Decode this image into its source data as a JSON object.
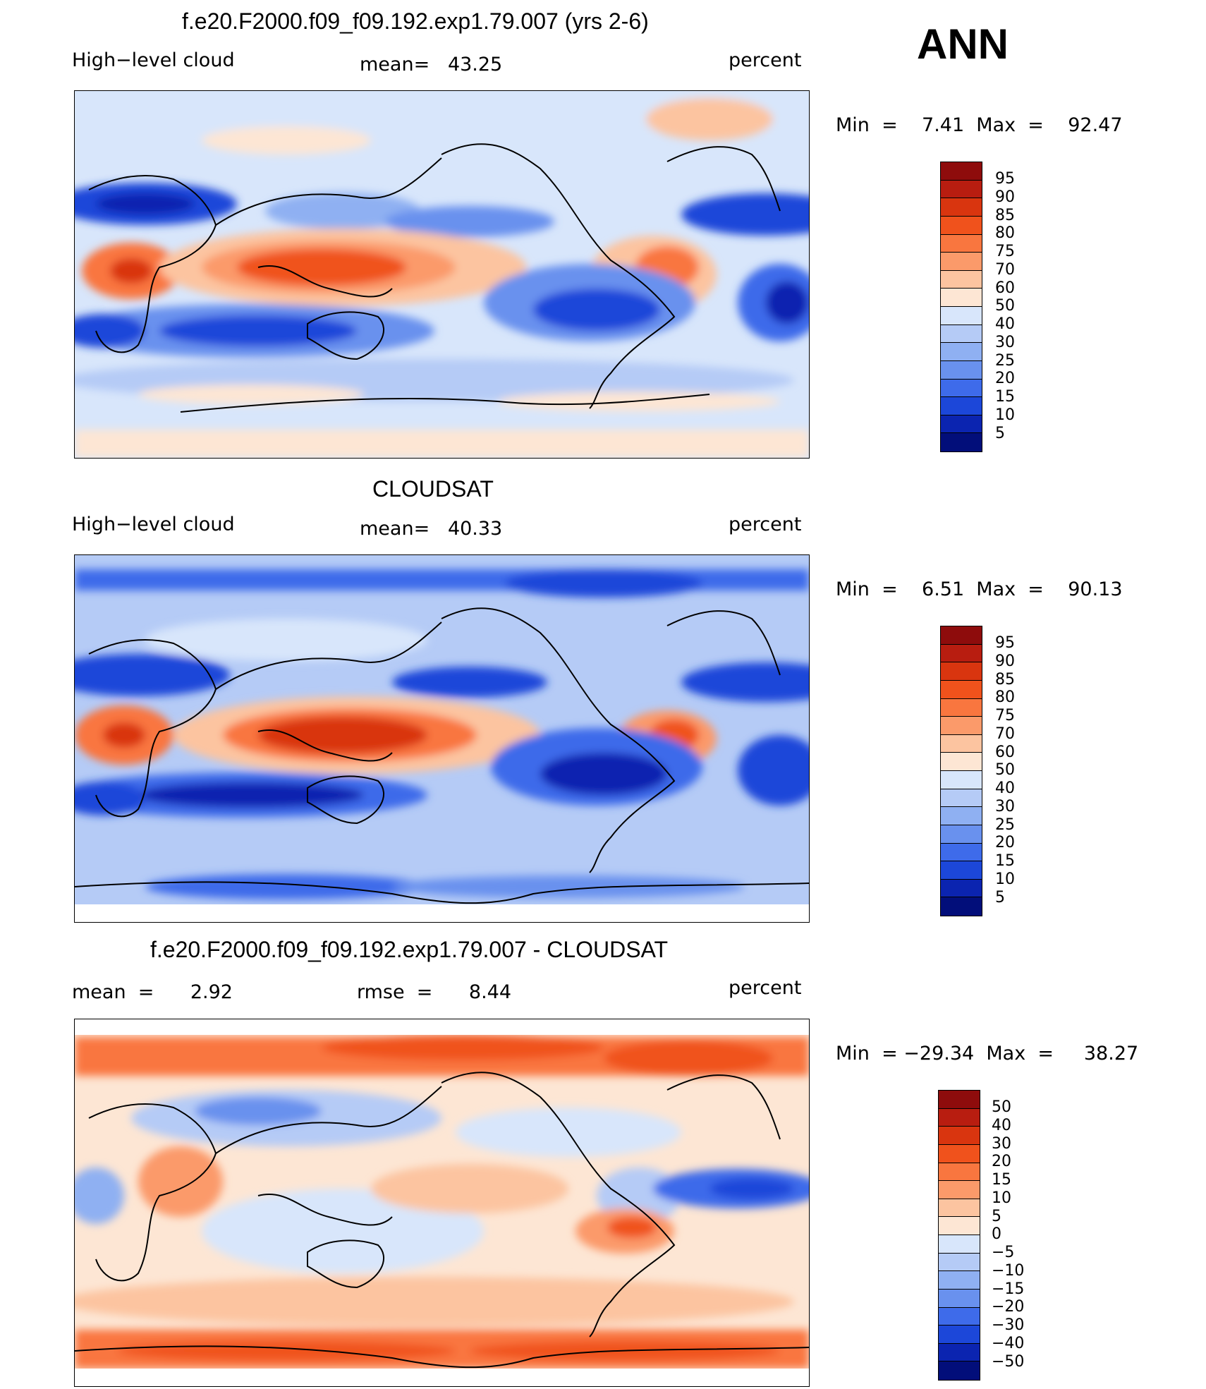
{
  "season": "ANN",
  "panels": [
    {
      "id": "model",
      "title": "f.e20.F2000.f09_f09.192.exp1.79.007 (yrs 2-6)",
      "left_label": "High−level cloud",
      "center_label": "mean=   43.25",
      "right_label": "percent",
      "minmax": "Min  =    7.41  Max  =    92.47",
      "levels": [
        "95",
        "90",
        "85",
        "80",
        "75",
        "70",
        "60",
        "50",
        "40",
        "30",
        "25",
        "20",
        "15",
        "10",
        "5"
      ]
    },
    {
      "id": "obs",
      "title": "CLOUDSAT",
      "left_label": "High−level cloud",
      "center_label": "mean=   40.33",
      "right_label": "percent",
      "minmax": "Min  =    6.51  Max  =    90.13",
      "levels": [
        "95",
        "90",
        "85",
        "80",
        "75",
        "70",
        "60",
        "50",
        "40",
        "30",
        "25",
        "20",
        "15",
        "10",
        "5"
      ]
    },
    {
      "id": "diff",
      "title": "f.e20.F2000.f09_f09.192.exp1.79.007 - CLOUDSAT",
      "left_label": "mean  =      2.92",
      "center_label": "rmse  =      8.44",
      "right_label": "percent",
      "minmax": "Min  = −29.34  Max  =     38.27",
      "levels": [
        "50",
        "40",
        "30",
        "20",
        "15",
        "10",
        "5",
        "0",
        "−5",
        "−10",
        "−15",
        "−20",
        "−30",
        "−40",
        "−50"
      ]
    }
  ],
  "colors": {
    "scale": [
      "#8e0c0c",
      "#b81d10",
      "#d9350f",
      "#f0521c",
      "#f9763f",
      "#fb9a6a",
      "#fcc4a0",
      "#fde6d4",
      "#d8e6fb",
      "#b5cbf6",
      "#8fb0f2",
      "#6991ee",
      "#3e6bea",
      "#1c47d9",
      "#0b24b0",
      "#020e7a"
    ]
  }
}
